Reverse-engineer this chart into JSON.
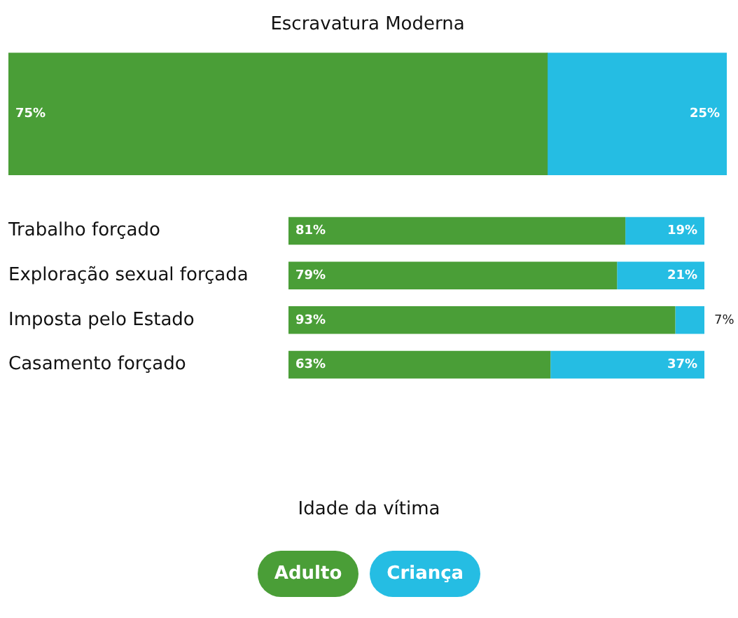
{
  "chart_data": [
    {
      "type": "bar",
      "title": "Escravatura Moderna",
      "orientation": "horizontal",
      "stacked": true,
      "categories": [
        null
      ],
      "xlim": [
        0,
        100
      ],
      "tick_labels": false,
      "legend": false,
      "series": [
        {
          "color": "#4a9e37",
          "values": [
            75
          ],
          "value_labels": [
            "75%"
          ]
        },
        {
          "color": "#25bde3",
          "values": [
            25
          ],
          "value_labels": [
            "25%"
          ]
        }
      ]
    },
    {
      "type": "bar",
      "orientation": "horizontal",
      "stacked": true,
      "categories": [
        "Trabalho forçado",
        "Exploração sexual forçada",
        "Imposta pelo Estado",
        "Casamento forçado"
      ],
      "xlim": [
        0,
        100
      ],
      "tick_labels": "y",
      "legend": "bottom",
      "legend_title": "Idade da vítima",
      "series": [
        {
          "name": "Adulto",
          "color": "#4a9e37",
          "values": [
            81,
            79,
            93,
            63
          ],
          "value_labels": [
            "81%",
            "79%",
            "93%",
            "63%"
          ]
        },
        {
          "name": "Criança",
          "color": "#25bde3",
          "values": [
            19,
            21,
            7,
            37
          ],
          "value_labels": [
            "19%",
            "21%",
            "7%",
            "37%"
          ]
        }
      ]
    }
  ]
}
